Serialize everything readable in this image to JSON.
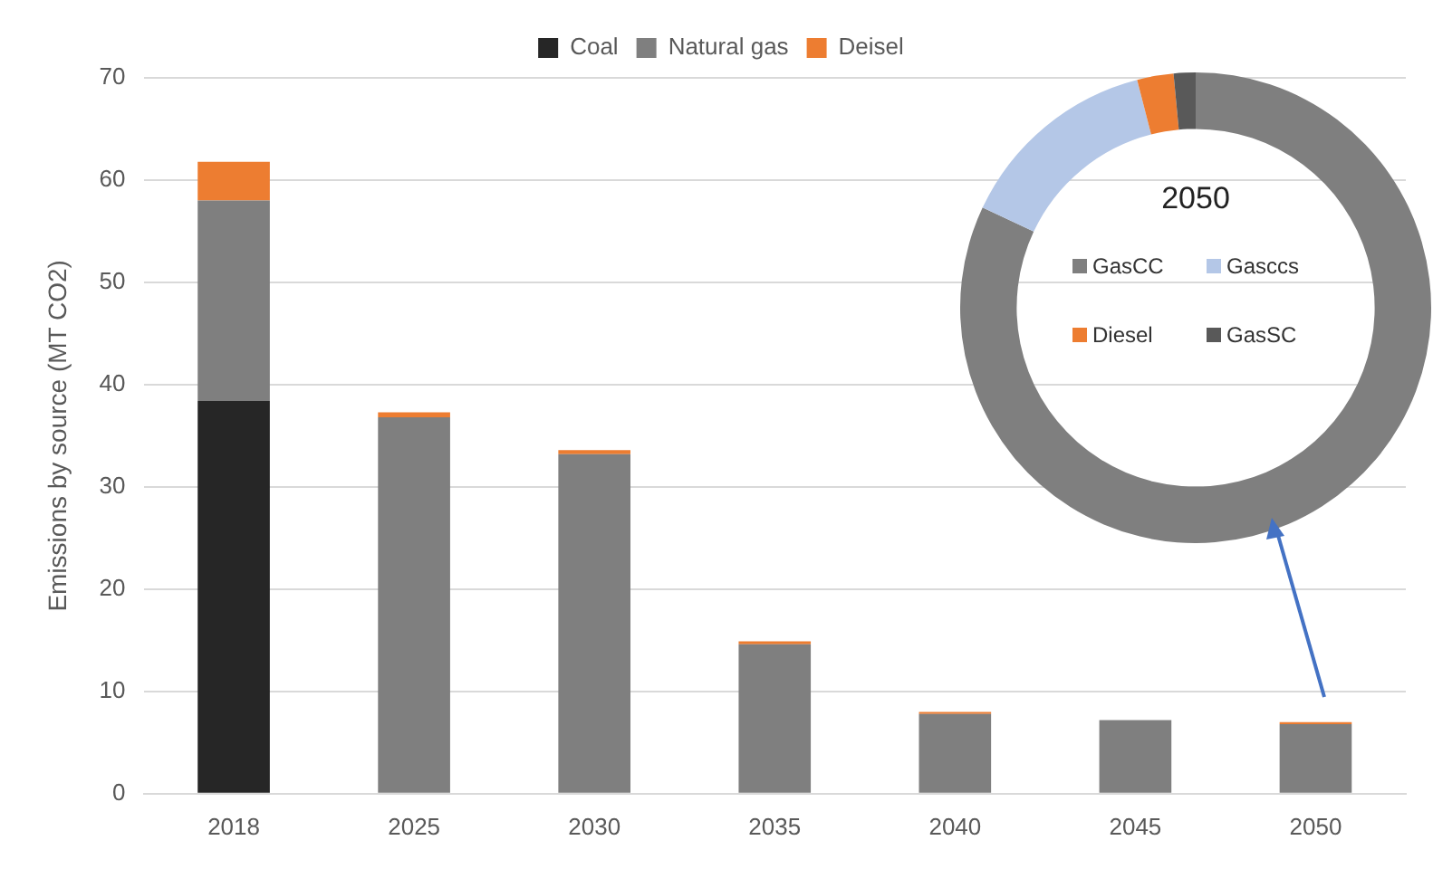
{
  "chart_data": [
    {
      "type": "bar",
      "stacked": true,
      "ylabel": "Emissions by source (MT CO2)",
      "categories": [
        "2018",
        "2025",
        "2030",
        "2035",
        "2040",
        "2045",
        "2050"
      ],
      "series": [
        {
          "name": "Coal",
          "color": "#262626",
          "values": [
            38.4,
            0,
            0,
            0,
            0,
            0,
            0
          ]
        },
        {
          "name": "Natural gas",
          "color": "#7f7f7f",
          "values": [
            19.6,
            36.8,
            33.2,
            14.6,
            7.8,
            7.2,
            6.8
          ]
        },
        {
          "name": "Deisel",
          "color": "#ed7d31",
          "values": [
            3.8,
            0.5,
            0.4,
            0.3,
            0.2,
            0,
            0.2
          ]
        }
      ],
      "ylim": [
        0,
        70
      ],
      "yticks": [
        0,
        10,
        20,
        30,
        40,
        50,
        60,
        70
      ],
      "grid": "y",
      "legend": "top"
    },
    {
      "type": "donut",
      "title": "2050",
      "categories": [
        "GasCC",
        "Gasccs",
        "Diesel",
        "GasSC"
      ],
      "values": [
        82,
        14,
        2.5,
        1.5
      ],
      "colors": [
        "#7f7f7f",
        "#b4c7e7",
        "#ed7d31",
        "#595959"
      ],
      "legend": "center"
    }
  ]
}
